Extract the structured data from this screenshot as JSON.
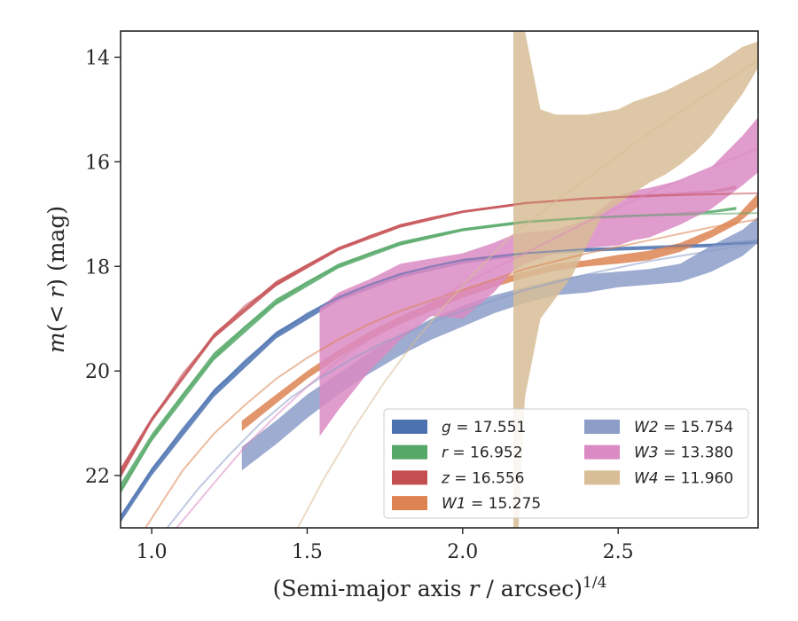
{
  "chart_data": {
    "type": "line",
    "xlabel": "(Semi-major axis r / arcsec)^1/4",
    "ylabel": "m(< r) (mag)",
    "xlim": [
      0.9,
      2.95
    ],
    "ylim": [
      23.0,
      13.5
    ],
    "y_inverted": true,
    "x_ticks": [
      1.0,
      1.5,
      2.0,
      2.5
    ],
    "x_tick_labels": [
      "1.0",
      "1.5",
      "2.0",
      "2.5"
    ],
    "y_ticks": [
      14,
      16,
      18,
      20,
      22
    ],
    "y_tick_labels": [
      "14",
      "16",
      "18",
      "20",
      "22"
    ],
    "grid": false,
    "legend": {
      "placement": "lower-right",
      "columns": 2,
      "entries": [
        {
          "key": "g",
          "var": "g",
          "text": "= 17.551"
        },
        {
          "key": "r",
          "var": "r",
          "text": "= 16.952"
        },
        {
          "key": "z",
          "var": "z",
          "text": "= 16.556"
        },
        {
          "key": "W1",
          "var": "W1",
          "text": "= 15.275"
        },
        {
          "key": "W2",
          "var": "W2",
          "text": "= 15.754"
        },
        {
          "key": "W3",
          "var": "W3",
          "text": "= 13.380"
        },
        {
          "key": "W4",
          "var": "W4",
          "text": "= 11.960"
        }
      ]
    },
    "series": [
      {
        "key": "g",
        "color": "#4c72b0",
        "model": {
          "x": [
            0.9,
            1.0,
            1.1,
            1.2,
            1.3,
            1.4,
            1.5,
            1.6,
            1.7,
            1.8,
            1.9,
            2.0,
            2.2,
            2.4,
            2.6,
            2.95
          ],
          "y": [
            22.8,
            21.9,
            21.1,
            20.4,
            19.8,
            19.3,
            18.9,
            18.6,
            18.35,
            18.15,
            18.0,
            17.88,
            17.75,
            17.67,
            17.62,
            17.55
          ]
        },
        "band": {
          "x": [
            0.9,
            1.0,
            1.2,
            1.4,
            1.6,
            1.8,
            2.0,
            2.2,
            2.4,
            2.6,
            2.8,
            2.95
          ],
          "y_lo": [
            22.75,
            21.85,
            20.35,
            19.25,
            18.55,
            18.12,
            17.85,
            17.72,
            17.65,
            17.62,
            17.57,
            17.48
          ],
          "y_hi": [
            22.9,
            22.0,
            20.5,
            19.38,
            18.66,
            18.22,
            17.95,
            17.8,
            17.72,
            17.68,
            17.63,
            17.55
          ]
        }
      },
      {
        "key": "r",
        "color": "#55a868",
        "model": {
          "x": [
            0.9,
            1.0,
            1.1,
            1.2,
            1.3,
            1.4,
            1.5,
            1.6,
            1.7,
            1.8,
            1.9,
            2.0,
            2.2,
            2.4,
            2.6,
            2.95
          ],
          "y": [
            22.3,
            21.3,
            20.45,
            19.75,
            19.15,
            18.7,
            18.3,
            18.0,
            17.75,
            17.57,
            17.42,
            17.3,
            17.15,
            17.07,
            17.02,
            16.98
          ]
        },
        "band": {
          "x": [
            0.9,
            1.0,
            1.2,
            1.4,
            1.6,
            1.8,
            2.0,
            2.2,
            2.4,
            2.6,
            2.8,
            2.88
          ],
          "y_lo": [
            22.15,
            21.2,
            19.65,
            18.62,
            17.95,
            17.52,
            17.27,
            17.12,
            17.05,
            17.0,
            16.93,
            16.86
          ],
          "y_hi": [
            22.35,
            21.35,
            19.8,
            18.74,
            18.04,
            17.6,
            17.33,
            17.18,
            17.1,
            17.05,
            16.98,
            16.92
          ]
        }
      },
      {
        "key": "z",
        "color": "#c44e52",
        "model": {
          "x": [
            0.9,
            1.0,
            1.1,
            1.2,
            1.3,
            1.4,
            1.5,
            1.6,
            1.7,
            1.8,
            1.9,
            2.0,
            2.2,
            2.4,
            2.6,
            2.95
          ],
          "y": [
            21.95,
            20.95,
            20.05,
            19.35,
            18.75,
            18.35,
            17.98,
            17.68,
            17.42,
            17.22,
            17.07,
            16.95,
            16.79,
            16.7,
            16.65,
            16.6
          ]
        },
        "band": {
          "x": [
            0.9,
            1.0,
            1.2,
            1.4,
            1.6,
            1.8,
            2.0,
            2.2,
            2.4,
            2.6,
            2.8,
            2.88
          ],
          "y_lo": [
            21.85,
            20.88,
            19.28,
            18.28,
            17.63,
            17.19,
            16.93,
            16.77,
            16.68,
            16.62,
            16.55,
            16.45
          ],
          "y_hi": [
            22.05,
            20.98,
            19.38,
            18.38,
            17.7,
            17.26,
            16.98,
            16.82,
            16.73,
            16.68,
            16.6,
            16.52
          ]
        }
      },
      {
        "key": "W1",
        "color": "#dd8452",
        "model": {
          "x": [
            0.98,
            1.1,
            1.2,
            1.3,
            1.4,
            1.5,
            1.6,
            1.7,
            1.8,
            1.9,
            2.0,
            2.2,
            2.4,
            2.6,
            2.8,
            2.95
          ],
          "y": [
            23.0,
            21.9,
            21.2,
            20.65,
            20.15,
            19.75,
            19.4,
            19.1,
            18.85,
            18.65,
            18.45,
            18.05,
            17.75,
            17.5,
            17.25,
            17.1
          ]
        },
        "band": {
          "x": [
            1.29,
            1.4,
            1.5,
            1.6,
            1.7,
            1.8,
            1.9,
            2.0,
            2.1,
            2.2,
            2.3,
            2.4,
            2.5,
            2.6,
            2.7,
            2.8,
            2.88,
            2.95
          ],
          "y_lo": [
            20.95,
            20.45,
            20.0,
            19.6,
            19.25,
            18.95,
            18.7,
            18.45,
            18.25,
            18.1,
            17.95,
            17.88,
            17.78,
            17.7,
            17.55,
            17.3,
            17.05,
            16.6
          ],
          "y_hi": [
            21.15,
            20.62,
            20.15,
            19.75,
            19.4,
            19.1,
            18.85,
            18.6,
            18.4,
            18.22,
            18.08,
            18.0,
            17.95,
            17.88,
            17.72,
            17.45,
            17.2,
            16.85
          ]
        }
      },
      {
        "key": "W2",
        "color": "#8c9dc8",
        "model": {
          "x": [
            1.05,
            1.15,
            1.25,
            1.35,
            1.45,
            1.55,
            1.65,
            1.75,
            1.85,
            1.95,
            2.05,
            2.2,
            2.4,
            2.6,
            2.8,
            2.95
          ],
          "y": [
            23.0,
            22.25,
            21.6,
            21.0,
            20.5,
            20.1,
            19.75,
            19.45,
            19.2,
            18.95,
            18.75,
            18.45,
            18.15,
            17.9,
            17.7,
            17.55
          ]
        },
        "band": {
          "x": [
            1.29,
            1.4,
            1.5,
            1.6,
            1.7,
            1.8,
            1.9,
            2.0,
            2.1,
            2.2,
            2.3,
            2.4,
            2.5,
            2.6,
            2.7,
            2.8,
            2.9,
            2.95
          ],
          "y_lo": [
            21.45,
            20.95,
            20.45,
            20.05,
            19.65,
            19.3,
            19.0,
            18.75,
            18.55,
            18.4,
            18.25,
            18.15,
            18.1,
            18.05,
            17.95,
            17.6,
            17.3,
            17.05
          ],
          "y_hi": [
            21.9,
            21.4,
            20.9,
            20.45,
            20.05,
            19.7,
            19.4,
            19.15,
            18.9,
            18.7,
            18.55,
            18.5,
            18.4,
            18.35,
            18.3,
            18.1,
            17.8,
            17.55
          ]
        }
      },
      {
        "key": "W3",
        "color": "#da8bc3",
        "model": {
          "x": [
            1.08,
            1.2,
            1.3,
            1.4,
            1.5,
            1.6,
            1.7,
            1.8,
            1.9,
            2.0,
            2.1,
            2.2,
            2.4,
            2.6,
            2.8,
            2.95
          ],
          "y": [
            23.0,
            22.15,
            21.45,
            20.85,
            20.3,
            19.8,
            19.4,
            19.05,
            18.7,
            18.35,
            18.05,
            17.75,
            17.15,
            16.6,
            16.1,
            15.75
          ]
        },
        "band": {
          "x": [
            1.54,
            1.6,
            1.7,
            1.8,
            1.9,
            2.0,
            2.1,
            2.16,
            2.2,
            2.3,
            2.4,
            2.5,
            2.55,
            2.6,
            2.7,
            2.8,
            2.9,
            2.95
          ],
          "y_lo": [
            18.8,
            18.5,
            18.25,
            17.95,
            17.85,
            17.75,
            17.55,
            17.4,
            17.35,
            17.3,
            17.1,
            16.65,
            16.55,
            16.5,
            16.35,
            16.1,
            15.5,
            15.15
          ],
          "y_hi": [
            21.25,
            20.75,
            20.0,
            19.4,
            18.95,
            19.0,
            18.5,
            18.1,
            17.95,
            17.75,
            17.65,
            17.6,
            17.5,
            17.45,
            17.2,
            16.9,
            16.45,
            16.2
          ]
        }
      },
      {
        "key": "W4",
        "color": "#d8bd96",
        "model": {
          "x": [
            1.47,
            1.55,
            1.65,
            1.75,
            1.85,
            1.95,
            2.05,
            2.15,
            2.3,
            2.45,
            2.6,
            2.75,
            2.95
          ],
          "y": [
            23.0,
            22.1,
            21.1,
            20.2,
            19.4,
            18.7,
            18.05,
            17.45,
            16.75,
            16.1,
            15.45,
            14.85,
            14.05
          ]
        },
        "band": {
          "x": [
            2.163,
            2.18,
            2.2,
            2.25,
            2.3,
            2.35,
            2.4,
            2.45,
            2.5,
            2.55,
            2.6,
            2.65,
            2.7,
            2.75,
            2.8,
            2.85,
            2.9,
            2.95
          ],
          "y_lo": [
            13.5,
            13.5,
            13.5,
            15.0,
            15.1,
            15.1,
            15.1,
            15.05,
            15.0,
            14.85,
            14.75,
            14.65,
            14.5,
            14.35,
            14.2,
            14.0,
            13.8,
            13.7
          ],
          "y_hi": [
            23.0,
            23.0,
            20.5,
            19.0,
            18.6,
            18.2,
            17.6,
            17.0,
            16.8,
            16.6,
            16.4,
            16.25,
            16.05,
            15.8,
            15.5,
            15.1,
            14.7,
            14.2
          ]
        }
      }
    ]
  }
}
